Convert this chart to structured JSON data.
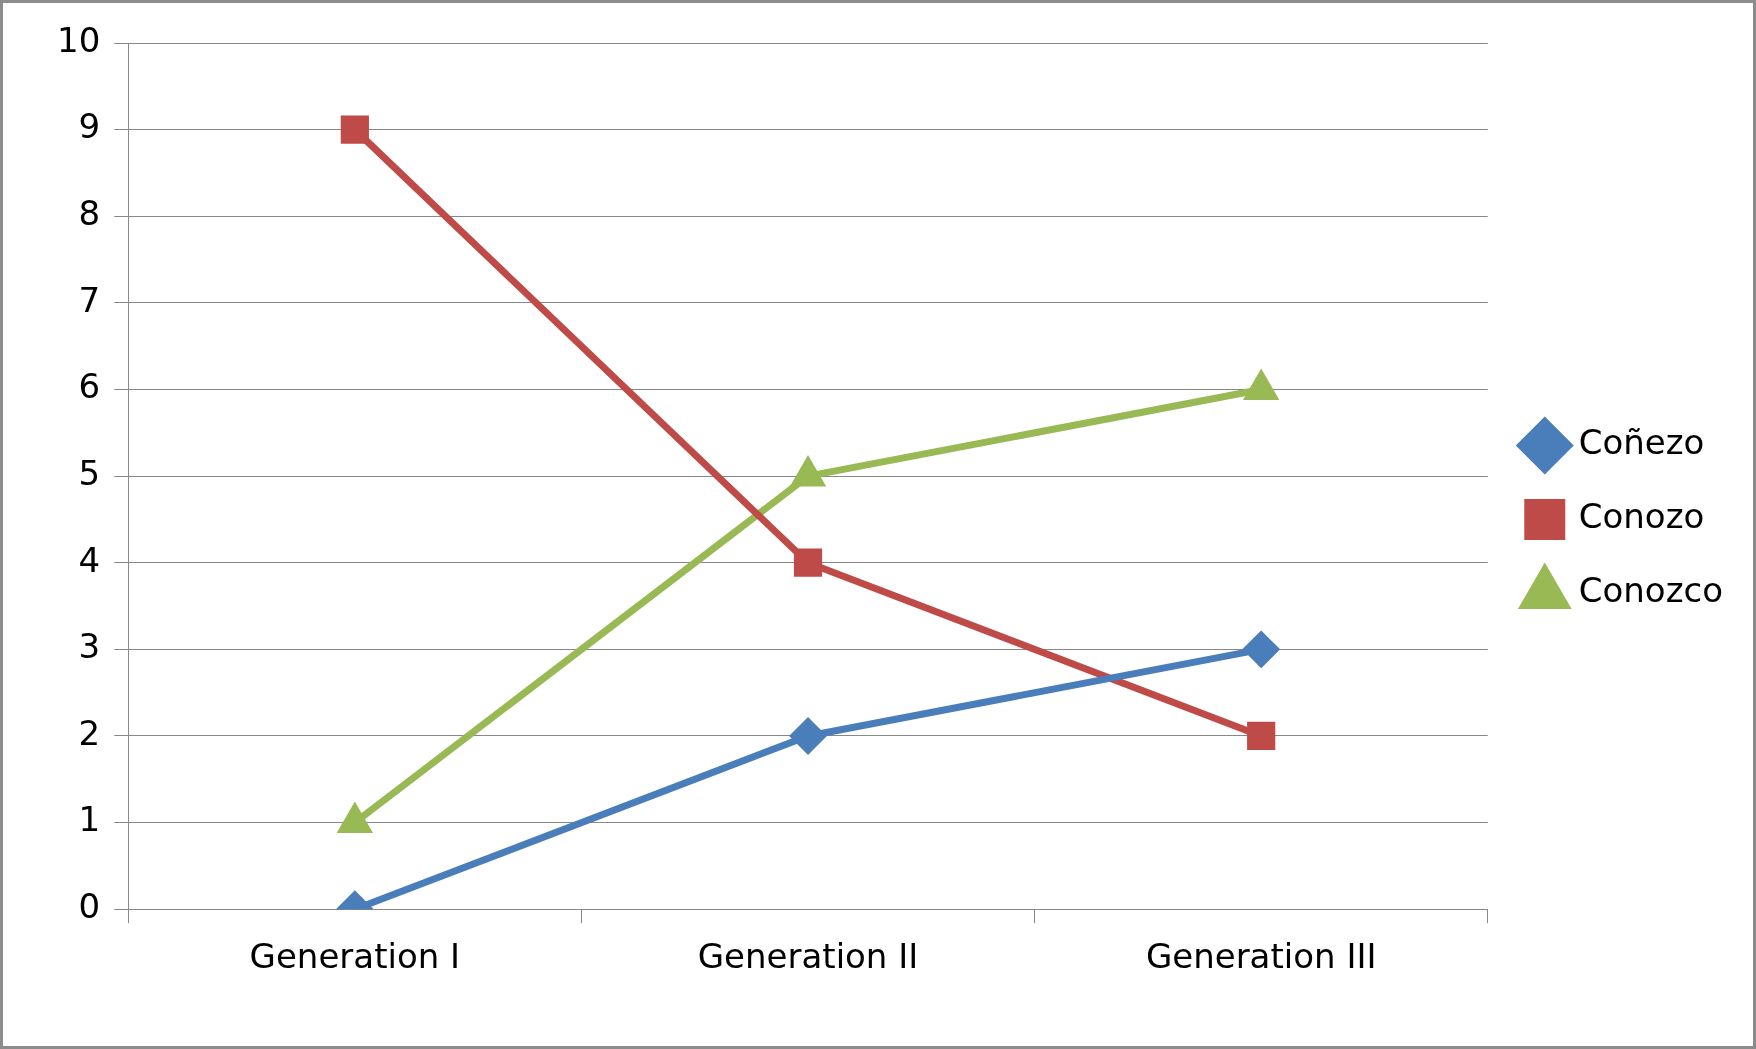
{
  "chart_data": {
    "type": "line",
    "categories": [
      "Generation I",
      "Generation II",
      "Generation III"
    ],
    "series": [
      {
        "name": "Coñezo",
        "color": "#4a7ebb",
        "marker": "diamond",
        "values": [
          0,
          2,
          3
        ]
      },
      {
        "name": "Conozo",
        "color": "#be4b48",
        "marker": "square",
        "values": [
          9,
          4,
          2
        ]
      },
      {
        "name": "Conozco",
        "color": "#98b954",
        "marker": "triangle",
        "values": [
          1,
          5,
          6
        ]
      }
    ],
    "ylim": [
      0,
      10
    ],
    "yticks": [
      0,
      1,
      2,
      3,
      4,
      5,
      6,
      7,
      8,
      9,
      10
    ],
    "grid": "y",
    "legend": "right",
    "line_style": "solid"
  }
}
